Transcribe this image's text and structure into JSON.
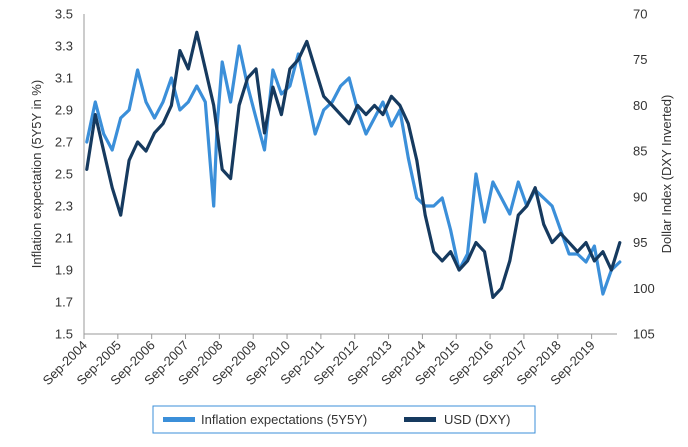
{
  "chart_data": {
    "type": "line",
    "left_axis": {
      "label": "Inflation expectation (5Y5Y in %)",
      "min": 1.5,
      "max": 3.5,
      "ticks": [
        "3.5",
        "3.3",
        "3.1",
        "2.9",
        "2.7",
        "2.5",
        "2.3",
        "2.1",
        "1.9",
        "1.7",
        "1.5"
      ]
    },
    "right_axis": {
      "label": "Dollar Index (DXY Inverted)",
      "min": 70,
      "max": 105,
      "inverted": true,
      "ticks": [
        "70",
        "75",
        "80",
        "85",
        "90",
        "95",
        "100",
        "105"
      ]
    },
    "x_axis": {
      "start": "Sep-2004",
      "end": "Jun-2020",
      "ticks": [
        "Sep-2004",
        "Sep-2005",
        "Sep-2006",
        "Sep-2007",
        "Sep-2008",
        "Sep-2009",
        "Sep-2010",
        "Sep-2011",
        "Sep-2012",
        "Sep-2013",
        "Sep-2014",
        "Sep-2015",
        "Sep-2016",
        "Sep-2017",
        "Sep-2018",
        "Sep-2019"
      ]
    },
    "grid": false,
    "legend_position": "bottom",
    "series": [
      {
        "name": "Inflation expectations (5Y5Y)",
        "axis": "left",
        "color": "#3b8fd9",
        "x": [
          2004.75,
          2005.0,
          2005.25,
          2005.5,
          2005.75,
          2006.0,
          2006.25,
          2006.5,
          2006.75,
          2007.0,
          2007.25,
          2007.5,
          2007.75,
          2008.0,
          2008.25,
          2008.5,
          2008.6,
          2008.75,
          2009.0,
          2009.25,
          2009.5,
          2009.75,
          2010.0,
          2010.25,
          2010.5,
          2010.75,
          2011.0,
          2011.25,
          2011.5,
          2011.75,
          2012.0,
          2012.25,
          2012.5,
          2012.75,
          2013.0,
          2013.25,
          2013.5,
          2013.75,
          2014.0,
          2014.25,
          2014.5,
          2014.75,
          2015.0,
          2015.25,
          2015.5,
          2015.75,
          2016.0,
          2016.25,
          2016.5,
          2016.75,
          2017.0,
          2017.25,
          2017.5,
          2017.75,
          2018.0,
          2018.25,
          2018.5,
          2018.75,
          2019.0,
          2019.25,
          2019.5,
          2019.75,
          2020.0,
          2020.25,
          2020.5
        ],
        "values": [
          2.7,
          2.95,
          2.75,
          2.65,
          2.85,
          2.9,
          3.15,
          2.95,
          2.85,
          2.95,
          3.1,
          2.9,
          2.95,
          3.05,
          2.95,
          2.3,
          2.8,
          3.2,
          2.95,
          3.3,
          3.05,
          2.85,
          2.65,
          3.15,
          3.0,
          3.05,
          3.25,
          3.0,
          2.75,
          2.9,
          2.95,
          3.05,
          3.1,
          2.9,
          2.75,
          2.85,
          2.95,
          2.8,
          2.9,
          2.6,
          2.35,
          2.3,
          2.3,
          2.35,
          2.15,
          1.9,
          2.0,
          2.5,
          2.2,
          2.45,
          2.35,
          2.25,
          2.45,
          2.3,
          2.4,
          2.35,
          2.3,
          2.15,
          2.0,
          2.0,
          1.95,
          2.05,
          1.75,
          1.9,
          1.95
        ]
      },
      {
        "name": "USD (DXY)",
        "axis": "right",
        "color": "#163a5f",
        "x": [
          2004.75,
          2005.0,
          2005.25,
          2005.5,
          2005.75,
          2006.0,
          2006.25,
          2006.5,
          2006.75,
          2007.0,
          2007.25,
          2007.5,
          2007.75,
          2008.0,
          2008.25,
          2008.5,
          2008.75,
          2009.0,
          2009.25,
          2009.5,
          2009.75,
          2010.0,
          2010.25,
          2010.5,
          2010.75,
          2011.0,
          2011.25,
          2011.5,
          2011.75,
          2012.0,
          2012.25,
          2012.5,
          2012.75,
          2013.0,
          2013.25,
          2013.5,
          2013.75,
          2014.0,
          2014.25,
          2014.5,
          2014.75,
          2015.0,
          2015.25,
          2015.5,
          2015.75,
          2016.0,
          2016.25,
          2016.5,
          2016.75,
          2017.0,
          2017.25,
          2017.5,
          2017.75,
          2018.0,
          2018.25,
          2018.5,
          2018.75,
          2019.0,
          2019.25,
          2019.5,
          2019.75,
          2020.0,
          2020.25,
          2020.5
        ],
        "values": [
          87,
          81,
          85,
          89,
          92,
          86,
          84,
          85,
          83,
          82,
          80,
          74,
          76,
          72,
          76,
          80,
          87,
          88,
          80,
          77,
          76,
          83,
          78,
          81,
          76,
          75,
          73,
          76,
          79,
          80,
          81,
          82,
          80,
          81,
          80,
          81,
          79,
          80,
          82,
          86,
          92,
          96,
          97,
          96,
          98,
          97,
          95,
          96,
          101,
          100,
          97,
          92,
          91,
          89,
          93,
          95,
          94,
          95,
          96,
          95,
          97,
          96,
          98,
          95
        ]
      }
    ]
  }
}
